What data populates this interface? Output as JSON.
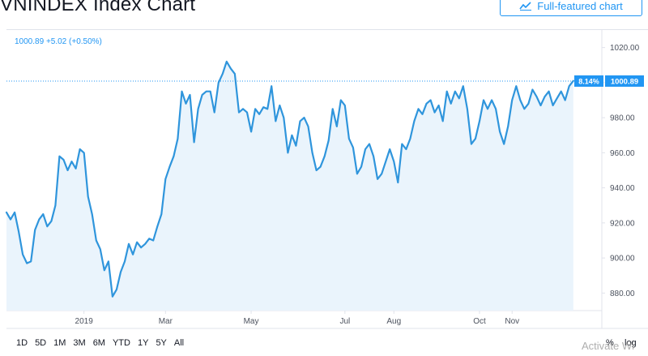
{
  "header": {
    "title": "VNINDEX Index Chart",
    "full_button_label": "Full-featured chart",
    "full_button_icon": "chart-line-icon"
  },
  "legend": {
    "value": "1000.89",
    "change": "+5.02 (+0.50%)"
  },
  "price_label": {
    "percent": "8.14%",
    "value": "1000.89"
  },
  "range_buttons": [
    "1D",
    "5D",
    "1M",
    "3M",
    "6M",
    "YTD",
    "1Y",
    "5Y",
    "All"
  ],
  "scale_buttons": {
    "percent": "%",
    "log": "log"
  },
  "watermark": "Activate Wi",
  "colors": {
    "line": "#2f95dc",
    "area": "#eaf4fc",
    "accent": "#2196f3",
    "grid": "#e0e3eb",
    "axis_text": "#4c525e"
  },
  "chart_data": {
    "type": "area",
    "x_tick_labels": [
      "2019",
      "Mar",
      "May",
      "Jul",
      "Aug",
      "Oct",
      "Nov"
    ],
    "x_tick_index": [
      19,
      39,
      60,
      83,
      95,
      116,
      124
    ],
    "y_ticks": [
      880,
      900,
      920,
      940,
      960,
      980,
      1000,
      1020
    ],
    "ylim": [
      870,
      1030
    ],
    "last_value": 1000.89,
    "last_percent": "8.14%",
    "values": [
      926,
      922,
      926,
      915,
      902,
      897,
      898,
      916,
      922,
      925,
      918,
      921,
      930,
      958,
      956,
      950,
      955,
      951,
      962,
      960,
      935,
      925,
      910,
      905,
      893,
      898,
      878,
      882,
      892,
      898,
      908,
      902,
      909,
      906,
      908,
      911,
      910,
      918,
      925,
      945,
      952,
      958,
      968,
      995,
      988,
      993,
      966,
      985,
      993,
      995,
      995,
      983,
      1000,
      1005,
      1012,
      1008,
      1005,
      983,
      985,
      983,
      972,
      985,
      982,
      986,
      985,
      998,
      978,
      987,
      980,
      960,
      970,
      964,
      978,
      980,
      975,
      960,
      950,
      952,
      958,
      967,
      985,
      975,
      990,
      987,
      968,
      963,
      948,
      952,
      962,
      965,
      958,
      945,
      948,
      955,
      962,
      955,
      943,
      965,
      962,
      968,
      978,
      985,
      982,
      988,
      990,
      983,
      987,
      978,
      995,
      988,
      995,
      991,
      998,
      985,
      965,
      968,
      978,
      990,
      985,
      990,
      985,
      972,
      965,
      975,
      990,
      998,
      990,
      985,
      988,
      996,
      992,
      987,
      992,
      995,
      987,
      991,
      995,
      990,
      998,
      1001
    ]
  }
}
